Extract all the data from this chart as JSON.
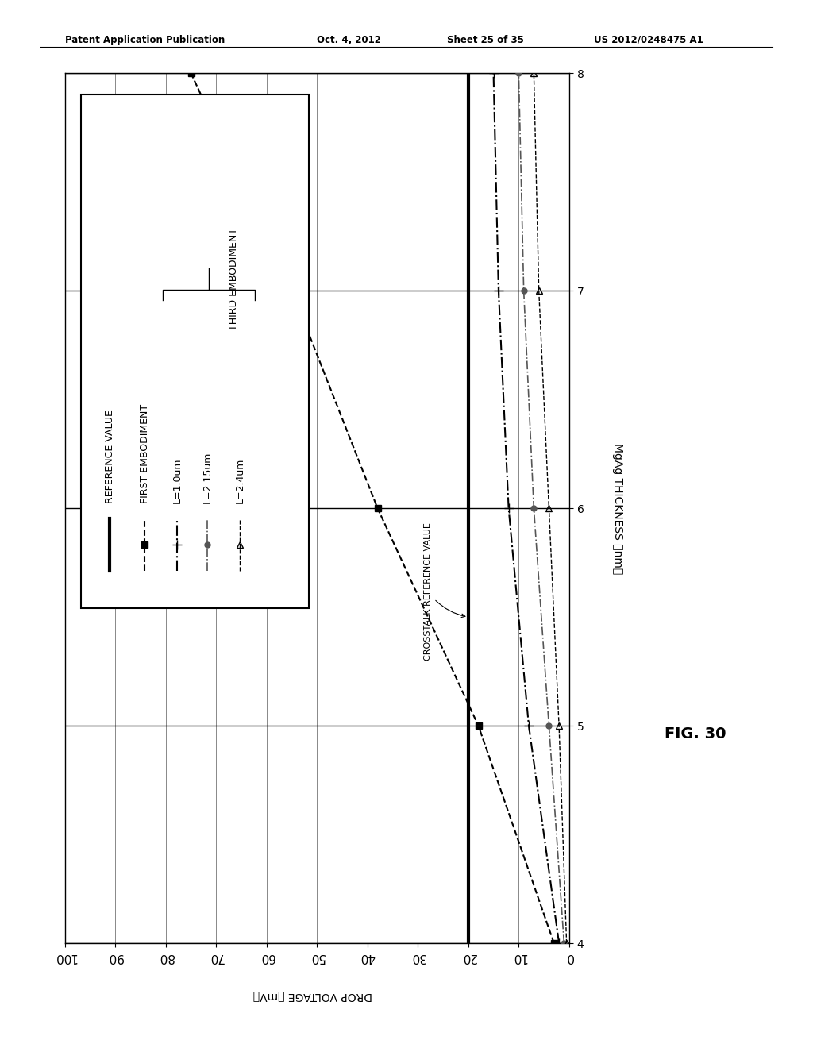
{
  "patent_header": "Patent Application Publication",
  "patent_date": "Oct. 4, 2012",
  "patent_sheet": "Sheet 25 of 35",
  "patent_number": "US 2012/0248475 A1",
  "title": "FIG. 30",
  "xlabel_rotated": "DROP VOLTAGE 【mV】",
  "ylabel_rotated": "MgAg THICKNESS 【nm】",
  "xlim": [
    4,
    8
  ],
  "ylim": [
    0,
    100
  ],
  "xticks": [
    4,
    5,
    6,
    7,
    8
  ],
  "yticks": [
    0,
    10,
    20,
    30,
    40,
    50,
    60,
    70,
    80,
    90,
    100
  ],
  "reference_value_y": 20,
  "series_reference": {
    "label": "REFERENCE VALUE",
    "mgag": [
      4,
      8
    ],
    "voltage": [
      20,
      20
    ],
    "color": "#000000",
    "linestyle": "solid",
    "linewidth": 3,
    "marker": null
  },
  "series_first": {
    "label": "FIRST EMBODIMENT",
    "mgag": [
      4,
      5,
      6,
      7,
      8
    ],
    "voltage": [
      3,
      18,
      38,
      55,
      75
    ],
    "color": "#000000",
    "linestyle": "--",
    "linewidth": 1.5,
    "marker": "s",
    "markersize": 6
  },
  "series_t1": {
    "label": "L=1.0um",
    "mgag": [
      4,
      5,
      6,
      7,
      8
    ],
    "voltage": [
      2,
      8,
      12,
      14,
      15
    ],
    "color": "#000000",
    "linestyle": "-.",
    "linewidth": 1.5,
    "marker": "+",
    "markersize": 9
  },
  "series_t2": {
    "label": "L=2.15um",
    "mgag": [
      4,
      5,
      6,
      7,
      8
    ],
    "voltage": [
      1,
      4,
      7,
      9,
      10
    ],
    "color": "#555555",
    "linestyle": "-.",
    "linewidth": 1.2,
    "marker": "o",
    "markersize": 5
  },
  "series_t3": {
    "label": "L=2.4um",
    "mgag": [
      4,
      5,
      6,
      7,
      8
    ],
    "voltage": [
      0.5,
      2,
      4,
      6,
      7
    ],
    "color": "#000000",
    "linestyle": "--",
    "linewidth": 1.0,
    "marker": "^",
    "markersize": 6
  },
  "crosstalk_label": "CROSSTALK REFERENCE VALUE",
  "legend_labels": [
    "REFERENCE VALUE",
    "FIRST EMBODIMENT",
    "L=1.0um",
    "L=2.15um",
    "L=2.4um"
  ],
  "third_embodiment_label": "THIRD EMBODIMENT",
  "background_color": "#ffffff"
}
